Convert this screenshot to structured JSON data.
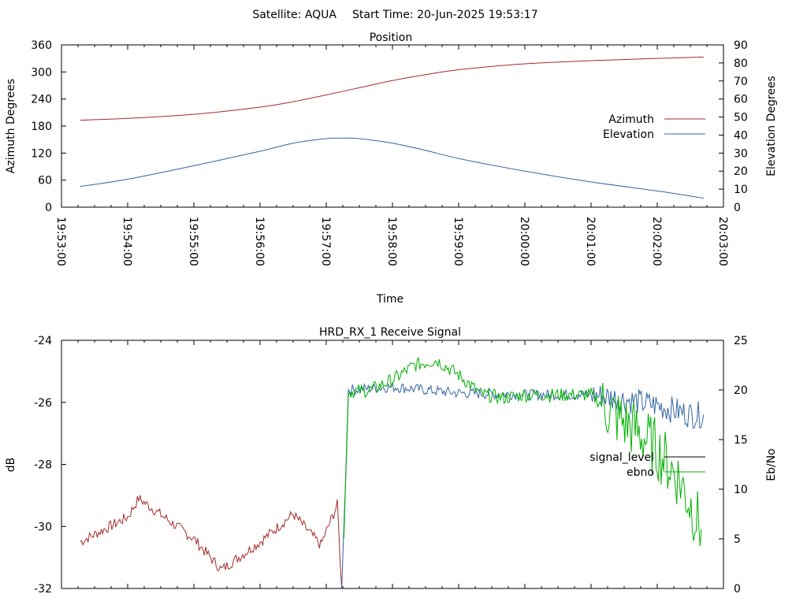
{
  "header": {
    "satellite": "Satellite: AQUA",
    "start_time": "Start Time: 20-Jun-2025 19:53:17"
  },
  "colors": {
    "azimuth": "#a52a2a",
    "elevation": "#3465a4",
    "signal_level": "#3465a4",
    "ebno": "#00b000",
    "red_segment": "#a52a2a",
    "legend_signal_sample": "#000000"
  },
  "chart_data": [
    {
      "type": "line",
      "title": "Position",
      "xlabel": "Time",
      "ylabel": "Azimuth Degrees",
      "y2label": "Elevation Degrees",
      "xlim": [
        "19:53:00",
        "20:03:00"
      ],
      "ylim": [
        0,
        360
      ],
      "y2lim": [
        0,
        90
      ],
      "x_ticks": [
        "19:53:00",
        "19:54:00",
        "19:55:00",
        "19:56:00",
        "19:57:00",
        "19:58:00",
        "19:59:00",
        "20:00:00",
        "20:01:00",
        "20:02:00",
        "20:03:00"
      ],
      "y_ticks": [
        "0",
        "60",
        "120",
        "180",
        "240",
        "300",
        "360"
      ],
      "y2_ticks": [
        "0",
        "10",
        "20",
        "30",
        "40",
        "50",
        "60",
        "70",
        "80",
        "90"
      ],
      "legend": "right",
      "series": [
        {
          "name": "Azimuth",
          "axis": "y",
          "x": [
            "19:53:17",
            "19:54:00",
            "19:55:00",
            "19:56:00",
            "19:56:30",
            "19:57:00",
            "19:57:30",
            "19:58:00",
            "19:58:30",
            "19:59:00",
            "20:00:00",
            "20:01:00",
            "20:02:00",
            "20:02:42"
          ],
          "values": [
            193,
            197,
            206,
            222,
            234,
            249,
            265,
            281,
            294,
            305,
            318,
            325,
            330,
            333
          ]
        },
        {
          "name": "Elevation",
          "axis": "y2",
          "x": [
            "19:53:17",
            "19:54:00",
            "19:55:00",
            "19:56:00",
            "19:56:30",
            "19:57:00",
            "19:57:15",
            "19:57:30",
            "19:58:00",
            "19:58:30",
            "19:59:00",
            "20:00:00",
            "20:01:00",
            "20:02:00",
            "20:02:42"
          ],
          "values": [
            11.5,
            15.5,
            23,
            31,
            35.5,
            38,
            38.3,
            38,
            35.5,
            31.5,
            27,
            20,
            14,
            9,
            5
          ]
        }
      ]
    },
    {
      "type": "line",
      "title": "HRD_RX_1 Receive Signal",
      "ylabel": "dB",
      "y2label": "Eb/No",
      "ylim": [
        -32,
        -24
      ],
      "y2lim": [
        0,
        25
      ],
      "y_ticks": [
        "-24",
        "-26",
        "-28",
        "-30",
        "-32"
      ],
      "y2_ticks": [
        "0",
        "5",
        "10",
        "15",
        "20",
        "25"
      ],
      "legend": "right",
      "series": [
        {
          "name": "signal_level",
          "axis": "y",
          "x": [
            "19:53:17",
            "19:54:00",
            "19:54:10",
            "19:55:00",
            "19:55:25",
            "19:56:00",
            "19:56:30",
            "19:56:55",
            "19:57:10",
            "19:57:14",
            "19:57:16",
            "19:57:20",
            "19:58:00",
            "19:59:00",
            "20:00:00",
            "20:01:00",
            "20:01:30",
            "20:02:00",
            "20:02:30",
            "20:02:42"
          ],
          "values": [
            -30.5,
            -29.7,
            -29.1,
            -30.4,
            -31.4,
            -30.5,
            -29.6,
            -30.6,
            -29.3,
            -32.0,
            -30.0,
            -25.6,
            -25.5,
            -25.7,
            -25.75,
            -25.75,
            -25.9,
            -26.1,
            -26.4,
            -26.4
          ]
        },
        {
          "name": "ebno",
          "axis": "y2",
          "x": [
            "19:57:16",
            "19:57:20",
            "19:57:40",
            "19:58:00",
            "19:58:20",
            "19:58:40",
            "19:59:00",
            "19:59:20",
            "19:59:40",
            "20:00:00",
            "20:00:20",
            "20:00:40",
            "20:01:00",
            "20:01:20",
            "20:01:40",
            "20:02:00",
            "20:02:20",
            "20:02:40"
          ],
          "values": [
            5,
            19.8,
            20,
            21,
            22.5,
            23,
            21.5,
            19.6,
            19.2,
            19.5,
            19.5,
            19.5,
            19.5,
            17.5,
            16,
            14,
            11,
            6
          ]
        }
      ]
    }
  ]
}
